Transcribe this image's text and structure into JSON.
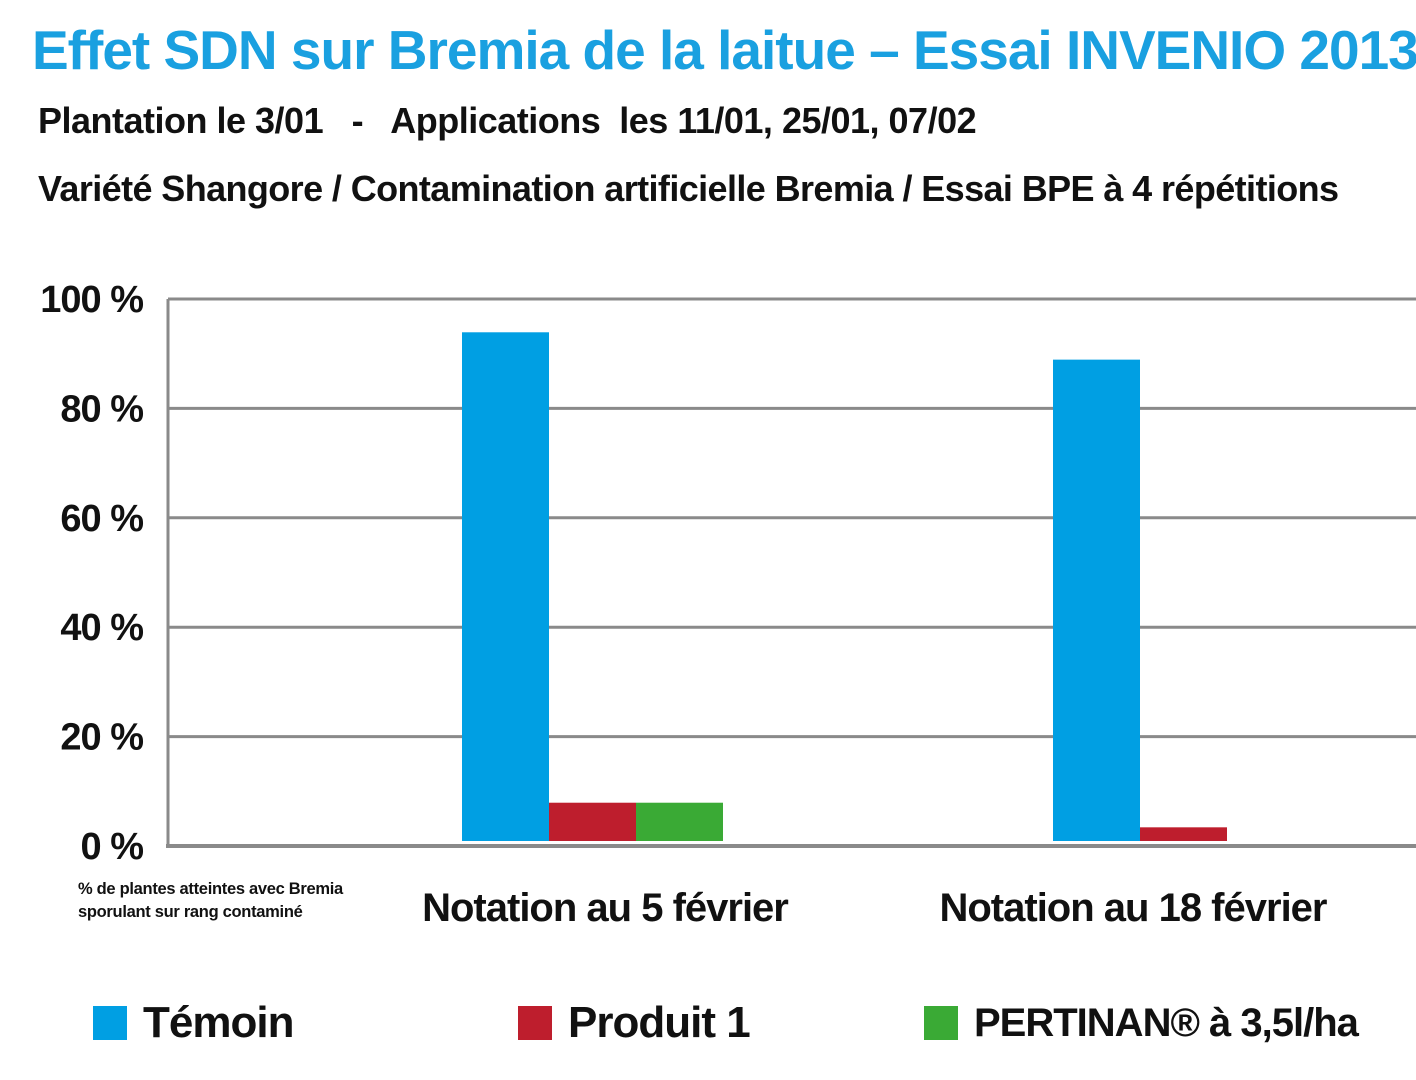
{
  "header": {
    "title": "Effet SDN sur Bremia de la laitue – Essai INVENIO 2013",
    "subtitle1": "Plantation le 3/01   -   Applications  les 11/01, 25/01, 07/02",
    "subtitle2": "Variété Shangore / Contamination artificielle Bremia / Essai BPE à 4 répétitions"
  },
  "chart_data": {
    "type": "bar",
    "title": "Effet SDN sur Bremia de la laitue – Essai INVENIO 2013",
    "ylabel_lines": [
      "% de plantes atteintes avec Bremia",
      "sporulant sur rang contaminé"
    ],
    "ylim": [
      0,
      100
    ],
    "yticks": [
      0,
      20,
      40,
      60,
      80,
      100
    ],
    "ytick_labels": [
      "0 %",
      "20 %",
      "40 %",
      "60 %",
      "80 %",
      "100 %"
    ],
    "grid": true,
    "categories": [
      "Notation au 5 février",
      "Notation au 18 février"
    ],
    "series": [
      {
        "name": "Témoin",
        "color": "#009fe3",
        "values": [
          93,
          88
        ]
      },
      {
        "name": "Produit  1",
        "color": "#be1e2d",
        "values": [
          7,
          2.5
        ]
      },
      {
        "name": "PERTINAN® à 3,5l/ha",
        "color": "#3aaa35",
        "values": [
          7,
          0
        ]
      }
    ],
    "legend_position": "bottom"
  }
}
